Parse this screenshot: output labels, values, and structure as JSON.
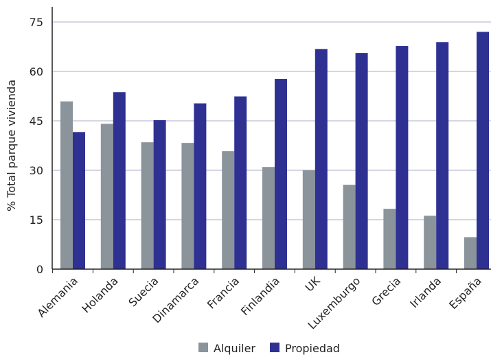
{
  "chart_data": {
    "type": "bar",
    "title": "",
    "xlabel": "",
    "ylabel": "% Total parque vivienda",
    "ylim": [
      0,
      75
    ],
    "yticks": [
      0,
      15,
      30,
      45,
      60,
      75
    ],
    "grid": true,
    "legend_position": "bottom-center",
    "categories": [
      "Alemania",
      "Holanda",
      "Suecia",
      "Dinamarca",
      "Francia",
      "Finlandia",
      "UK",
      "Luxemburgo",
      "Grecia",
      "Irlanda",
      "España"
    ],
    "series": [
      {
        "name": "Alquiler",
        "color": "#8b939b",
        "values": [
          50.9,
          44.1,
          38.5,
          38.3,
          35.8,
          31.0,
          30.0,
          25.6,
          18.3,
          16.2,
          9.7
        ]
      },
      {
        "name": "Propiedad",
        "color": "#2e3192",
        "values": [
          41.6,
          53.7,
          45.2,
          50.3,
          52.4,
          57.7,
          66.8,
          65.6,
          67.7,
          68.9,
          72.0
        ]
      }
    ]
  }
}
